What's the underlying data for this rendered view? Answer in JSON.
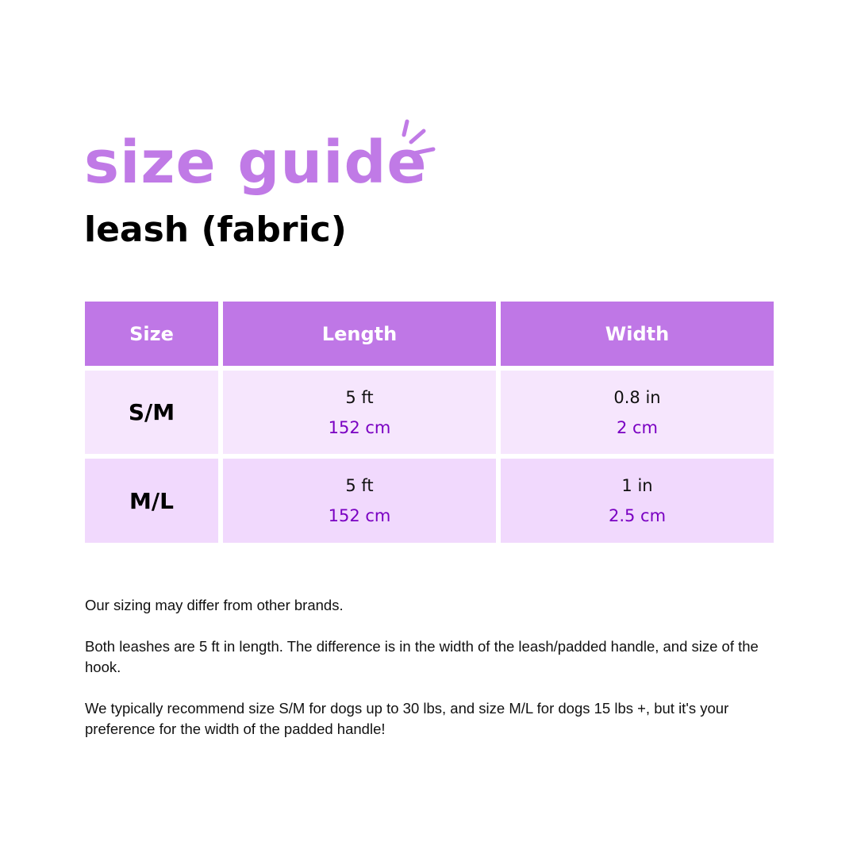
{
  "title": "size guide",
  "subtitle": "leash (fabric)",
  "colors": {
    "accent": "#bf77e6",
    "row1": "#f6e6fd",
    "row2": "#f1d9fd",
    "metric_text": "#7a00c2"
  },
  "table": {
    "headers": [
      "Size",
      "Length",
      "Width"
    ],
    "rows": [
      {
        "size": "S/M",
        "length_imperial": "5 ft",
        "length_metric": "152 cm",
        "width_imperial": "0.8 in",
        "width_metric": "2 cm"
      },
      {
        "size": "M/L",
        "length_imperial": "5 ft",
        "length_metric": "152 cm",
        "width_imperial": "1 in",
        "width_metric": "2.5 cm"
      }
    ]
  },
  "notes": [
    "Our sizing may differ from other brands.",
    "Both leashes are 5 ft in length. The difference is in the width of the leash/padded handle, and size of the hook.",
    "We typically recommend size S/M for dogs up to 30 lbs, and size M/L for dogs 15 lbs +, but it's your preference for the width of the padded handle!"
  ]
}
